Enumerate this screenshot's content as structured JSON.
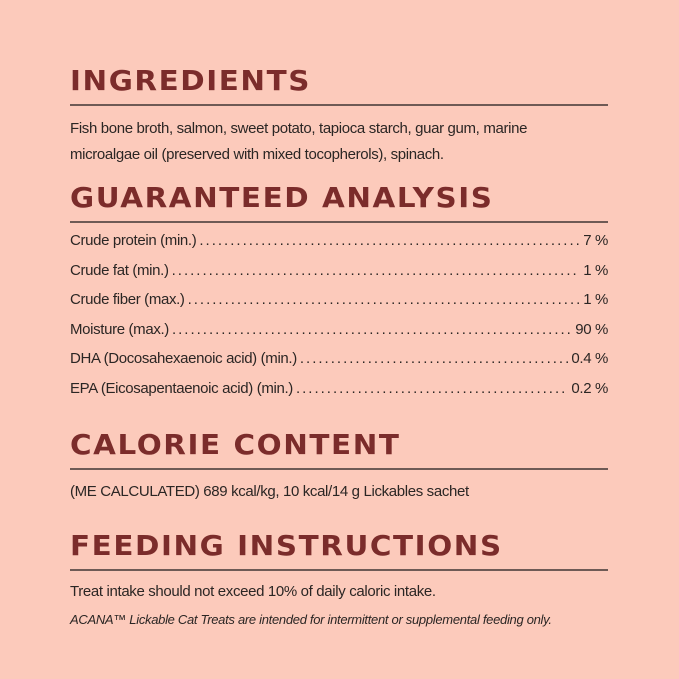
{
  "ingredients": {
    "heading": "INGREDIENTS",
    "text_line1": "Fish bone broth, salmon, sweet potato, tapioca starch, guar gum, marine",
    "text_line2": "microalgae oil (preserved with mixed tocopherols), spinach."
  },
  "analysis": {
    "heading": "GUARANTEED ANALYSIS",
    "rows": [
      {
        "label": "Crude protein (min.)",
        "value": "7 %"
      },
      {
        "label": "Crude fat (min.)",
        "value": "1 %"
      },
      {
        "label": "Crude fiber (max.)",
        "value": "1 %"
      },
      {
        "label": "Moisture (max.)",
        "value": "90 %"
      },
      {
        "label": "DHA (Docosahexaenoic acid) (min.)",
        "value": "0.4 %"
      },
      {
        "label": "EPA (Eicosapentaenoic acid) (min.)",
        "value": "0.2 %"
      }
    ]
  },
  "calorie": {
    "heading": "CALORIE CONTENT",
    "text": "(ME CALCULATED) 689 kcal/kg, 10 kcal/14 g Lickables sachet"
  },
  "feeding": {
    "heading": "FEEDING INSTRUCTIONS",
    "text": "Treat intake should not exceed 10% of daily caloric intake.",
    "note": "ACANA™ Lickable Cat Treats are intended for intermittent or supplemental feeding only."
  },
  "colors": {
    "background": "#fccabb",
    "heading": "#7b2c2b",
    "rule": "#6e5a55"
  }
}
